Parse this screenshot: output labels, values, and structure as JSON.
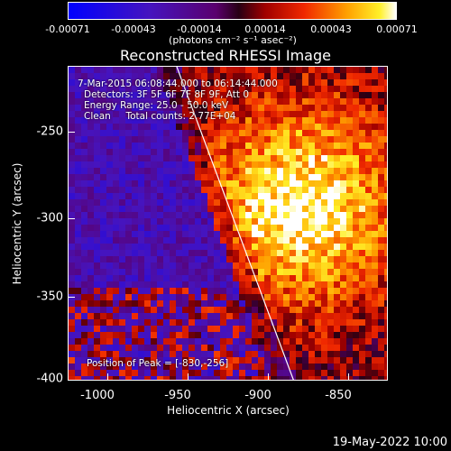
{
  "colorbar": {
    "ticks": [
      "-0.00071",
      "-0.00043",
      "-0.00014",
      "0.00014",
      "0.00043",
      "0.00071"
    ],
    "units": "(photons cm⁻² s⁻¹ asec⁻²)"
  },
  "title": "Reconstructed RHESSI Image",
  "info": {
    "time": "7-Mar-2015 06:08:44.000 to 06:14:44.000",
    "detectors": "Detectors: 3F 5F 6F 7F 8F 9F, Att 0",
    "energy": "Energy Range: 25.0 - 50.0 keV",
    "clean": "Clean     Total counts: 2.77E+04",
    "peak": "Position of Peak = [-830,-256]"
  },
  "axes": {
    "xlabel": "Heliocentric X (arcsec)",
    "ylabel": "Heliocentric Y (arcsec)",
    "xticks": [
      "-1000",
      "-950",
      "-900",
      "-850"
    ],
    "yticks": [
      "-250",
      "-300",
      "-350",
      "-400"
    ]
  },
  "footer": "19-May-2022 10:00",
  "colors": {
    "background": "#000000",
    "limb_line": "#ffffff"
  }
}
